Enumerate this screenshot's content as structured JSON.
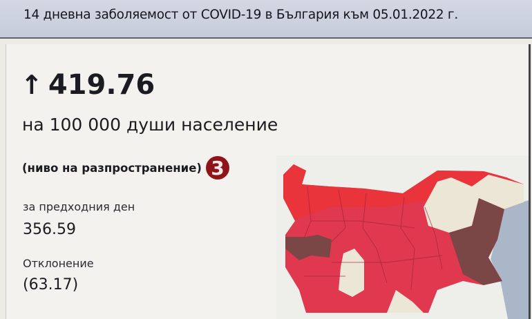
{
  "header": {
    "title": "14 дневна заболяемост от COVID-19 в България към 05.01.2022 г."
  },
  "main": {
    "trend_icon": "arrow-up-icon",
    "value": "419.76",
    "unit_label": "на 100 000 души население",
    "level_label": "(ниво на разпространение)",
    "level_value": "3",
    "previous_label": "за предходния ден",
    "previous_value": "356.59",
    "deviation_label": "Отклонение",
    "deviation_value": "(63.17)"
  },
  "colors": {
    "level_badge": "#8e1419",
    "high": "#e8343a",
    "very_high": "#e0384f",
    "low": "#ece6d6",
    "extreme": "#7a4646"
  }
}
